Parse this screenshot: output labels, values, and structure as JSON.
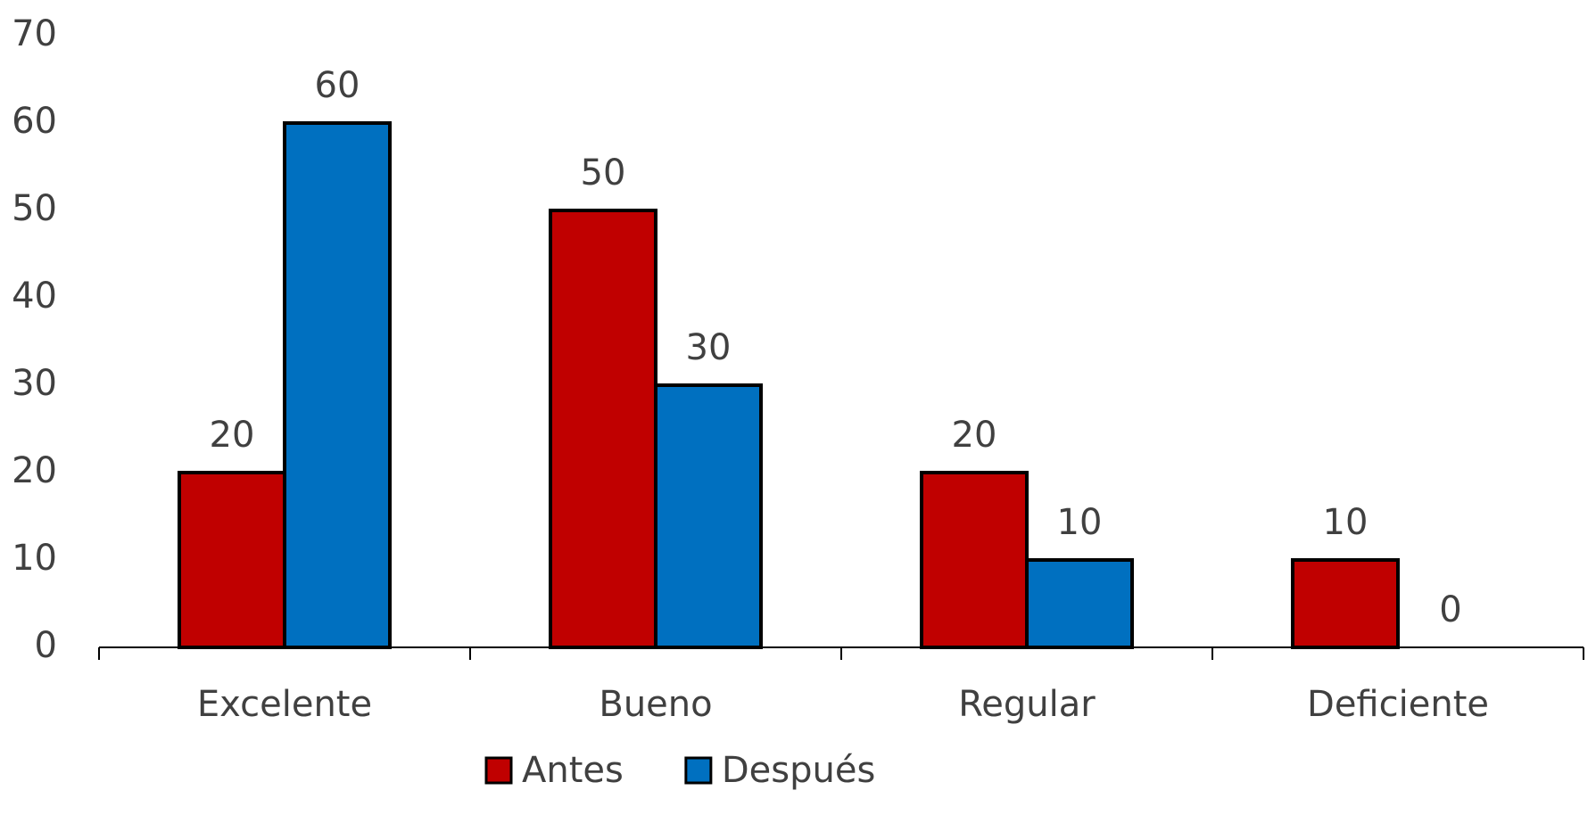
{
  "chart_data": {
    "type": "bar",
    "categories": [
      "Excelente",
      "Bueno",
      "Regular",
      "Deficiente"
    ],
    "series": [
      {
        "name": "Antes",
        "color": "#c00000",
        "values": [
          20,
          50,
          20,
          10
        ]
      },
      {
        "name": "Después",
        "color": "#0070c0",
        "values": [
          60,
          30,
          10,
          0
        ]
      }
    ],
    "ylim": [
      0,
      70
    ],
    "yticks": [
      0,
      10,
      20,
      30,
      40,
      50,
      60,
      70
    ],
    "grid": false,
    "legend": "bottom"
  }
}
